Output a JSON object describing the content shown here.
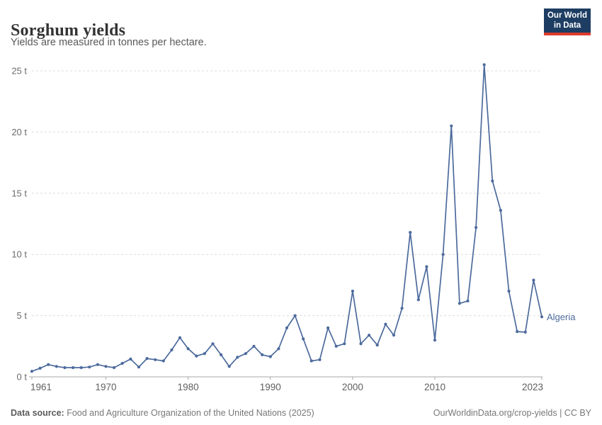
{
  "header": {
    "title": "Sorghum yields",
    "subtitle": "Yields are measured in tonnes per hectare.",
    "logo": {
      "line1": "Our World",
      "line2": "in Data"
    }
  },
  "colors": {
    "series": "#4c6a9c",
    "grid": "#dcdcdc",
    "axis": "#a8a8a8",
    "x_labels": "#606060",
    "y_labels": "#6b6b6b",
    "logo_bg": "#1d3d63",
    "logo_accent": "#dc3b2e"
  },
  "chart_data": {
    "type": "line",
    "title": "Sorghum yields",
    "ylabel": "tonnes per hectare",
    "xlabel": "",
    "grid": "horizontal-dashed",
    "legend_position": "end-of-line-label",
    "xlim": [
      1961,
      2023
    ],
    "ylim": [
      0,
      26
    ],
    "x_ticks": [
      1961,
      1970,
      1980,
      1990,
      2000,
      2010,
      2023
    ],
    "x_tick_labels": [
      "1961",
      "1970",
      "1980",
      "1990",
      "2000",
      "2010",
      "2023"
    ],
    "y_ticks": [
      0,
      5,
      10,
      15,
      20,
      25
    ],
    "y_tick_labels": [
      "0 t",
      "5 t",
      "10 t",
      "15 t",
      "20 t",
      "25 t"
    ],
    "series": [
      {
        "name": "Algeria",
        "x": [
          1961,
          1962,
          1963,
          1964,
          1965,
          1966,
          1967,
          1968,
          1969,
          1970,
          1971,
          1972,
          1973,
          1974,
          1975,
          1976,
          1977,
          1978,
          1979,
          1980,
          1981,
          1982,
          1983,
          1984,
          1985,
          1986,
          1987,
          1988,
          1989,
          1990,
          1991,
          1992,
          1993,
          1994,
          1995,
          1996,
          1997,
          1998,
          1999,
          2000,
          2001,
          2002,
          2003,
          2004,
          2005,
          2006,
          2007,
          2008,
          2009,
          2010,
          2011,
          2012,
          2013,
          2014,
          2015,
          2016,
          2017,
          2018,
          2019,
          2020,
          2021,
          2022,
          2023
        ],
        "values": [
          0.45,
          0.7,
          1.0,
          0.85,
          0.75,
          0.75,
          0.75,
          0.8,
          1.0,
          0.85,
          0.75,
          1.1,
          1.45,
          0.8,
          1.5,
          1.4,
          1.3,
          2.2,
          3.2,
          2.3,
          1.7,
          1.9,
          2.7,
          1.8,
          0.85,
          1.6,
          1.9,
          2.5,
          1.8,
          1.65,
          2.3,
          4.0,
          5.0,
          3.1,
          1.3,
          1.4,
          4.0,
          2.5,
          2.7,
          7.0,
          2.7,
          3.4,
          2.6,
          4.3,
          3.4,
          5.6,
          11.8,
          6.3,
          9.0,
          3.0,
          10.0,
          20.5,
          6.0,
          6.2,
          12.2,
          25.5,
          16.0,
          13.6,
          7.0,
          3.7,
          3.65,
          7.9,
          4.9
        ]
      }
    ]
  },
  "footer": {
    "source_label": "Data source:",
    "source_text": " Food and Agriculture Organization of the United Nations (2025)",
    "right_text": "OurWorldinData.org/crop-yields | CC BY"
  }
}
